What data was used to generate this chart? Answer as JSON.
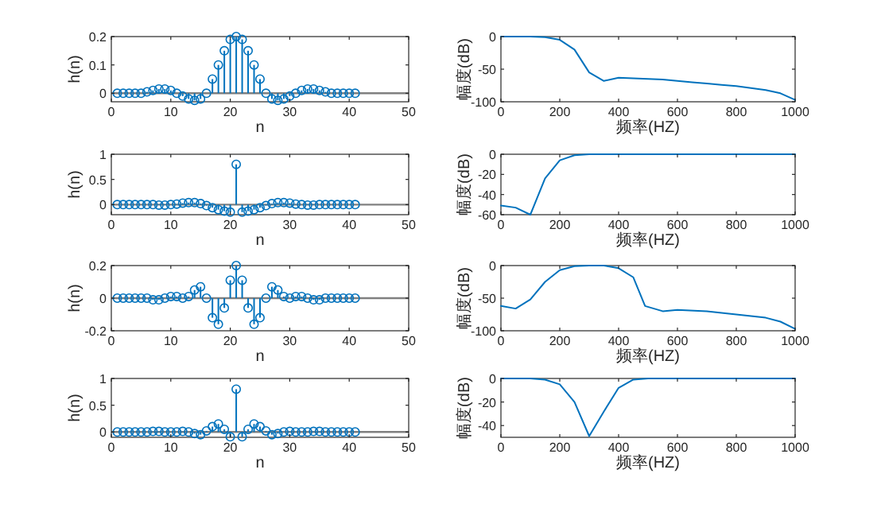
{
  "chart_data": [
    {
      "type": "lollipop",
      "xlabel": "n",
      "ylabel": "h(n)",
      "marker": "circle",
      "xlim": [
        0,
        50
      ],
      "xticks": [
        0,
        10,
        20,
        30,
        40,
        50
      ],
      "ylim": [
        -0.03,
        0.2
      ],
      "yticks": [
        0,
        0.1,
        0.2
      ],
      "ref_lines": [
        {
          "axis": "y",
          "value": 0,
          "color": "#808080"
        }
      ],
      "x": [
        1,
        2,
        3,
        4,
        5,
        6,
        7,
        8,
        9,
        10,
        11,
        12,
        13,
        14,
        15,
        16,
        17,
        18,
        19,
        20,
        21,
        22,
        23,
        24,
        25,
        26,
        27,
        28,
        29,
        30,
        31,
        32,
        33,
        34,
        35,
        36,
        37,
        38,
        39,
        40,
        41
      ],
      "series": [
        {
          "color": "#0072bd",
          "values": [
            0,
            0,
            0,
            0,
            0,
            0.005,
            0.01,
            0.015,
            0.015,
            0.01,
            0,
            -0.01,
            -0.02,
            -0.025,
            -0.02,
            0,
            0.05,
            0.1,
            0.15,
            0.19,
            0.2,
            0.19,
            0.15,
            0.1,
            0.05,
            0,
            -0.02,
            -0.025,
            -0.02,
            -0.01,
            0,
            0.01,
            0.015,
            0.015,
            0.01,
            0.005,
            0,
            0,
            0,
            0,
            0
          ]
        }
      ]
    },
    {
      "type": "line",
      "xlabel": "频率(HZ)",
      "ylabel": "幅度(dB)",
      "xlim": [
        0,
        1000
      ],
      "xticks": [
        0,
        200,
        400,
        600,
        800,
        1000
      ],
      "ylim": [
        -100,
        0
      ],
      "yticks": [
        -100,
        -50,
        0
      ],
      "x": [
        0,
        50,
        100,
        150,
        200,
        250,
        300,
        350,
        400,
        450,
        500,
        550,
        600,
        650,
        700,
        750,
        800,
        850,
        900,
        950,
        1000
      ],
      "series": [
        {
          "color": "#0072bd",
          "values": [
            0,
            0,
            0,
            -1,
            -5,
            -20,
            -55,
            -68,
            -63,
            -64,
            -65,
            -66,
            -68,
            -70,
            -72,
            -74,
            -76,
            -79,
            -82,
            -87,
            -97
          ]
        }
      ]
    },
    {
      "type": "lollipop",
      "xlabel": "n",
      "ylabel": "h(n)",
      "marker": "circle",
      "xlim": [
        0,
        50
      ],
      "xticks": [
        0,
        10,
        20,
        30,
        40,
        50
      ],
      "ylim": [
        -0.2,
        1
      ],
      "yticks": [
        0,
        0.5,
        1
      ],
      "ref_lines": [
        {
          "axis": "y",
          "value": 0,
          "color": "#808080"
        }
      ],
      "x": [
        1,
        2,
        3,
        4,
        5,
        6,
        7,
        8,
        9,
        10,
        11,
        12,
        13,
        14,
        15,
        16,
        17,
        18,
        19,
        20,
        21,
        22,
        23,
        24,
        25,
        26,
        27,
        28,
        29,
        30,
        31,
        32,
        33,
        34,
        35,
        36,
        37,
        38,
        39,
        40,
        41
      ],
      "series": [
        {
          "color": "#0072bd",
          "values": [
            0,
            0,
            0,
            0,
            0,
            0,
            0,
            -0.01,
            -0.01,
            0,
            0.01,
            0.03,
            0.04,
            0.04,
            0.02,
            -0.02,
            -0.06,
            -0.1,
            -0.13,
            -0.15,
            0.8,
            -0.15,
            -0.13,
            -0.1,
            -0.06,
            -0.02,
            0.02,
            0.04,
            0.04,
            0.03,
            0.01,
            0,
            -0.01,
            -0.01,
            0,
            0,
            0,
            0,
            0,
            0,
            0
          ]
        }
      ]
    },
    {
      "type": "line",
      "xlabel": "频率(HZ)",
      "ylabel": "幅度(dB)",
      "xlim": [
        0,
        1000
      ],
      "xticks": [
        0,
        200,
        400,
        600,
        800,
        1000
      ],
      "ylim": [
        -60,
        0
      ],
      "yticks": [
        -60,
        -40,
        -20,
        0
      ],
      "x": [
        0,
        50,
        100,
        150,
        200,
        250,
        300,
        400,
        600,
        800,
        1000
      ],
      "series": [
        {
          "color": "#0072bd",
          "values": [
            -51,
            -53,
            -60,
            -24,
            -6,
            -1,
            0,
            0,
            0,
            0,
            0
          ]
        }
      ]
    },
    {
      "type": "lollipop",
      "xlabel": "n",
      "ylabel": "h(n)",
      "marker": "circle",
      "xlim": [
        0,
        50
      ],
      "xticks": [
        0,
        10,
        20,
        30,
        40,
        50
      ],
      "ylim": [
        -0.2,
        0.2
      ],
      "yticks": [
        -0.2,
        0,
        0.2
      ],
      "ref_lines": [
        {
          "axis": "y",
          "value": 0,
          "color": "#808080"
        }
      ],
      "x": [
        1,
        2,
        3,
        4,
        5,
        6,
        7,
        8,
        9,
        10,
        11,
        12,
        13,
        14,
        15,
        16,
        17,
        18,
        19,
        20,
        21,
        22,
        23,
        24,
        25,
        26,
        27,
        28,
        29,
        30,
        31,
        32,
        33,
        34,
        35,
        36,
        37,
        38,
        39,
        40,
        41
      ],
      "series": [
        {
          "color": "#0072bd",
          "values": [
            0,
            0,
            0,
            0,
            0,
            0,
            -0.01,
            -0.01,
            0,
            0.01,
            0.01,
            0,
            0.01,
            0.05,
            0.07,
            0,
            -0.12,
            -0.16,
            -0.06,
            0.11,
            0.2,
            0.11,
            -0.06,
            -0.16,
            -0.12,
            0,
            0.07,
            0.05,
            0.01,
            0,
            0.01,
            0.01,
            0,
            -0.01,
            -0.01,
            0,
            0,
            0,
            0,
            0,
            0
          ]
        }
      ]
    },
    {
      "type": "line",
      "xlabel": "频率(HZ)",
      "ylabel": "幅度(dB)",
      "xlim": [
        0,
        1000
      ],
      "xticks": [
        0,
        200,
        400,
        600,
        800,
        1000
      ],
      "ylim": [
        -100,
        0
      ],
      "yticks": [
        -100,
        -50,
        0
      ],
      "x": [
        0,
        50,
        100,
        150,
        200,
        250,
        300,
        350,
        400,
        450,
        490,
        550,
        600,
        700,
        800,
        900,
        950,
        1000
      ],
      "series": [
        {
          "color": "#0072bd",
          "values": [
            -62,
            -66,
            -52,
            -25,
            -7,
            -1,
            0,
            0,
            -4,
            -18,
            -62,
            -70,
            -68,
            -70,
            -75,
            -80,
            -86,
            -97
          ]
        }
      ]
    },
    {
      "type": "lollipop",
      "xlabel": "n",
      "ylabel": "h(n)",
      "marker": "circle",
      "xlim": [
        0,
        50
      ],
      "xticks": [
        0,
        10,
        20,
        30,
        40,
        50
      ],
      "ylim": [
        -0.1,
        1
      ],
      "yticks": [
        0,
        0.5,
        1
      ],
      "ref_lines": [
        {
          "axis": "y",
          "value": 0,
          "color": "#808080"
        }
      ],
      "x": [
        1,
        2,
        3,
        4,
        5,
        6,
        7,
        8,
        9,
        10,
        11,
        12,
        13,
        14,
        15,
        16,
        17,
        18,
        19,
        20,
        21,
        22,
        23,
        24,
        25,
        26,
        27,
        28,
        29,
        30,
        31,
        32,
        33,
        34,
        35,
        36,
        37,
        38,
        39,
        40,
        41
      ],
      "series": [
        {
          "color": "#0072bd",
          "values": [
            0,
            0,
            0,
            0,
            0,
            0,
            0.01,
            0.01,
            0,
            0,
            0,
            0.01,
            0,
            -0.03,
            -0.05,
            0.02,
            0.1,
            0.15,
            0.05,
            -0.09,
            0.8,
            -0.09,
            0.05,
            0.15,
            0.1,
            0.02,
            -0.05,
            -0.03,
            0,
            0.01,
            0,
            0,
            0,
            0.01,
            0.01,
            0,
            0,
            0,
            0,
            0,
            0
          ]
        }
      ]
    },
    {
      "type": "line",
      "xlabel": "频率(HZ)",
      "ylabel": "幅度(dB)",
      "xlim": [
        0,
        1000
      ],
      "xticks": [
        0,
        200,
        400,
        600,
        800,
        1000
      ],
      "ylim": [
        -50,
        0
      ],
      "yticks": [
        -40,
        -20,
        0
      ],
      "x": [
        0,
        100,
        150,
        200,
        250,
        300,
        350,
        400,
        450,
        500,
        1000
      ],
      "series": [
        {
          "color": "#0072bd",
          "values": [
            0,
            0,
            -1,
            -5,
            -20,
            -49,
            -28,
            -8,
            -1,
            0,
            0
          ]
        }
      ]
    }
  ]
}
